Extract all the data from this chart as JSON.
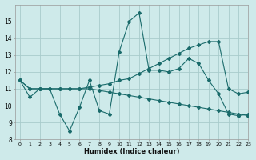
{
  "xlabel": "Humidex (Indice chaleur)",
  "xlim": [
    -0.5,
    23
  ],
  "ylim": [
    8,
    16
  ],
  "xticks": [
    0,
    1,
    2,
    3,
    4,
    5,
    6,
    7,
    8,
    9,
    10,
    11,
    12,
    13,
    14,
    15,
    16,
    17,
    18,
    19,
    20,
    21,
    22,
    23
  ],
  "yticks": [
    8,
    9,
    10,
    11,
    12,
    13,
    14,
    15
  ],
  "bg_color": "#ceeaea",
  "grid_color": "#a8cccc",
  "line_color": "#1a6b6b",
  "line1_x": [
    0,
    1,
    2,
    3,
    4,
    5,
    6,
    7,
    8,
    9,
    10,
    11,
    12,
    13,
    14,
    15,
    16,
    17,
    18,
    19,
    20,
    21,
    22,
    23
  ],
  "line1_y": [
    11.5,
    10.5,
    11.0,
    11.0,
    9.5,
    8.5,
    9.9,
    11.5,
    9.7,
    9.5,
    13.2,
    15.0,
    15.5,
    12.1,
    12.1,
    12.0,
    12.2,
    12.8,
    12.5,
    11.5,
    10.7,
    9.5,
    9.4,
    9.5
  ],
  "line2_x": [
    0,
    1,
    2,
    3,
    4,
    5,
    6,
    7,
    8,
    9,
    10,
    11,
    12,
    13,
    14,
    15,
    16,
    17,
    18,
    19,
    20,
    21,
    22,
    23
  ],
  "line2_y": [
    11.5,
    11.0,
    11.0,
    11.0,
    11.0,
    11.0,
    11.0,
    11.1,
    11.2,
    11.3,
    11.5,
    11.6,
    11.9,
    12.2,
    12.5,
    12.8,
    13.1,
    13.4,
    13.6,
    13.8,
    13.8,
    11.0,
    10.7,
    10.8
  ],
  "line3_x": [
    0,
    1,
    2,
    3,
    4,
    5,
    6,
    7,
    8,
    9,
    10,
    11,
    12,
    13,
    14,
    15,
    16,
    17,
    18,
    19,
    20,
    21,
    22,
    23
  ],
  "line3_y": [
    11.5,
    11.0,
    11.0,
    11.0,
    11.0,
    11.0,
    11.0,
    11.0,
    10.9,
    10.8,
    10.7,
    10.6,
    10.5,
    10.4,
    10.3,
    10.2,
    10.1,
    10.0,
    9.9,
    9.8,
    9.7,
    9.6,
    9.5,
    9.4
  ]
}
